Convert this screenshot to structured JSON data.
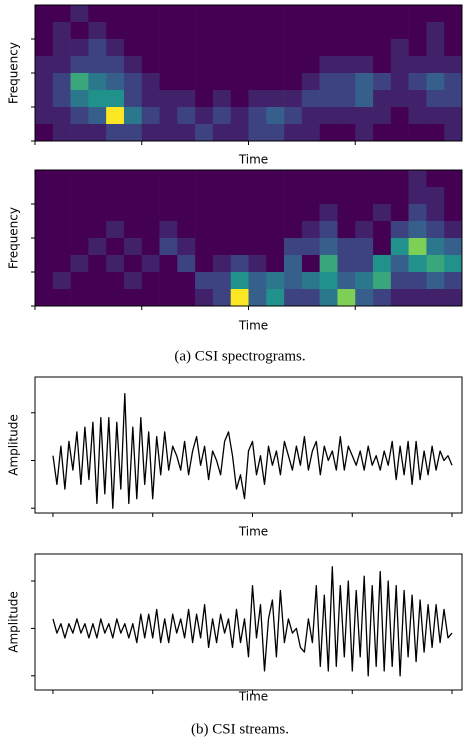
{
  "chart_data": [
    {
      "type": "heatmap",
      "xlabel": "Time",
      "ylabel": "Frequency",
      "xlim": [
        0,
        24
      ],
      "ylim": [
        0,
        4
      ],
      "xticks": [
        0,
        6,
        12,
        18
      ],
      "yticks": [
        0,
        1,
        2,
        3
      ],
      "zlim": [
        0,
        1
      ],
      "colorscale": [
        "#440154",
        "#3b528b",
        "#21918c",
        "#5ec962",
        "#fde725"
      ],
      "values": [
        [
          0,
          0,
          0.1,
          0,
          0,
          0,
          0,
          0,
          0,
          0,
          0,
          0,
          0,
          0,
          0,
          0,
          0,
          0,
          0,
          0,
          0,
          0,
          0,
          0
        ],
        [
          0,
          0.1,
          0,
          0.1,
          0,
          0,
          0,
          0,
          0,
          0,
          0,
          0,
          0,
          0,
          0,
          0,
          0,
          0,
          0,
          0,
          0,
          0,
          0.1,
          0
        ],
        [
          0,
          0.1,
          0.1,
          0.2,
          0.1,
          0,
          0,
          0,
          0,
          0,
          0,
          0,
          0,
          0,
          0,
          0,
          0,
          0,
          0,
          0,
          0.1,
          0,
          0.1,
          0
        ],
        [
          0.1,
          0.1,
          0.2,
          0.2,
          0.2,
          0.1,
          0,
          0,
          0,
          0,
          0,
          0,
          0,
          0,
          0,
          0,
          0.1,
          0.1,
          0.1,
          0,
          0.1,
          0.1,
          0.1,
          0.1
        ],
        [
          0.1,
          0.2,
          0.6,
          0.4,
          0.3,
          0.2,
          0.1,
          0,
          0,
          0,
          0,
          0,
          0,
          0,
          0,
          0.1,
          0.2,
          0.2,
          0.3,
          0.2,
          0.1,
          0.2,
          0.3,
          0.2
        ],
        [
          0.1,
          0.2,
          0.4,
          0.5,
          0.5,
          0.2,
          0.1,
          0.1,
          0.1,
          0,
          0.1,
          0,
          0.1,
          0.1,
          0.1,
          0.2,
          0.2,
          0.2,
          0.3,
          0.1,
          0.1,
          0.1,
          0.2,
          0.2
        ],
        [
          0.1,
          0.1,
          0.2,
          0.3,
          1.0,
          0.4,
          0.2,
          0.1,
          0.2,
          0.1,
          0.2,
          0.1,
          0.2,
          0.3,
          0.2,
          0.1,
          0.1,
          0.1,
          0.1,
          0.1,
          0,
          0.1,
          0.1,
          0.1
        ],
        [
          0,
          0.1,
          0.1,
          0.1,
          0.2,
          0.2,
          0.1,
          0.1,
          0.1,
          0.2,
          0.1,
          0.1,
          0.2,
          0.2,
          0.1,
          0.1,
          0,
          0,
          0.1,
          0,
          0,
          0,
          0,
          0.1
        ]
      ]
    },
    {
      "type": "heatmap",
      "xlabel": "Time",
      "ylabel": "Frequency",
      "xlim": [
        0,
        24
      ],
      "ylim": [
        0,
        4
      ],
      "xticks": [
        0,
        6,
        12,
        18
      ],
      "yticks": [
        0,
        1,
        2,
        3
      ],
      "zlim": [
        0,
        1
      ],
      "colorscale": [
        "#440154",
        "#3b528b",
        "#21918c",
        "#5ec962",
        "#fde725"
      ],
      "values": [
        [
          0,
          0,
          0,
          0,
          0,
          0,
          0,
          0,
          0,
          0,
          0,
          0,
          0,
          0,
          0,
          0,
          0,
          0,
          0,
          0,
          0,
          0.1,
          0,
          0
        ],
        [
          0,
          0,
          0,
          0,
          0,
          0,
          0,
          0,
          0,
          0,
          0,
          0,
          0,
          0,
          0,
          0,
          0,
          0,
          0,
          0,
          0,
          0.1,
          0.1,
          0
        ],
        [
          0,
          0,
          0,
          0,
          0,
          0,
          0,
          0,
          0,
          0,
          0,
          0,
          0,
          0,
          0,
          0,
          0.1,
          0,
          0,
          0.1,
          0,
          0.2,
          0.1,
          0
        ],
        [
          0,
          0,
          0,
          0,
          0.1,
          0,
          0,
          0.1,
          0,
          0,
          0,
          0,
          0,
          0,
          0,
          0.1,
          0.2,
          0,
          0.1,
          0,
          0.2,
          0.3,
          0.2,
          0.1
        ],
        [
          0,
          0,
          0,
          0.1,
          0,
          0.1,
          0,
          0.2,
          0.1,
          0,
          0,
          0,
          0,
          0,
          0.2,
          0.2,
          0.3,
          0.2,
          0.2,
          0,
          0.5,
          0.8,
          0.4,
          0.3
        ],
        [
          0,
          0,
          0.1,
          0,
          0.1,
          0,
          0.1,
          0,
          0.2,
          0,
          0.1,
          0.2,
          0.1,
          0,
          0.3,
          0,
          0.6,
          0.2,
          0.2,
          0.5,
          0.3,
          0.5,
          0.6,
          0.5
        ],
        [
          0,
          0.1,
          0,
          0,
          0,
          0.1,
          0,
          0,
          0,
          0.2,
          0.2,
          0.5,
          0.3,
          0.4,
          0.3,
          0.4,
          0.5,
          0.3,
          0.4,
          0.6,
          0.2,
          0.2,
          0.3,
          0.2
        ],
        [
          0,
          0,
          0,
          0,
          0,
          0,
          0,
          0,
          0,
          0.1,
          0.2,
          1.0,
          0.3,
          0.5,
          0.2,
          0.2,
          0.4,
          0.8,
          0.3,
          0.2,
          0.1,
          0.1,
          0.1,
          0.1
        ]
      ]
    },
    {
      "type": "line",
      "xlabel": "Time",
      "ylabel": "Amplitude",
      "xlim": [
        -9,
        205
      ],
      "ylim": [
        -1.1,
        1.75
      ],
      "xticks": [
        0,
        50,
        100,
        150,
        200
      ],
      "yticks": [
        -1,
        0,
        1
      ],
      "color": "#000000",
      "x": [
        0,
        2,
        4,
        6,
        8,
        10,
        12,
        14,
        16,
        18,
        20,
        22,
        24,
        26,
        28,
        30,
        32,
        34,
        36,
        38,
        40,
        42,
        44,
        46,
        48,
        50,
        52,
        54,
        56,
        58,
        60,
        62,
        64,
        66,
        68,
        70,
        72,
        74,
        76,
        78,
        80,
        82,
        84,
        86,
        88,
        90,
        92,
        94,
        96,
        98,
        100,
        102,
        104,
        106,
        108,
        110,
        112,
        114,
        116,
        118,
        120,
        122,
        124,
        126,
        128,
        130,
        132,
        134,
        136,
        138,
        140,
        142,
        144,
        146,
        148,
        150,
        152,
        154,
        156,
        158,
        160,
        162,
        164,
        166,
        168,
        170,
        172,
        174,
        176,
        178,
        180,
        182,
        184,
        186,
        188,
        190,
        192,
        194,
        196,
        198,
        200
      ],
      "values": [
        0.1,
        -0.5,
        0.3,
        -0.6,
        0.4,
        -0.2,
        0.6,
        -0.5,
        0.7,
        -0.4,
        0.8,
        -0.9,
        0.9,
        -0.7,
        0.9,
        -1.0,
        0.8,
        -0.6,
        1.4,
        -0.9,
        0.7,
        -0.8,
        0.9,
        -0.5,
        0.6,
        -0.8,
        0.5,
        -0.3,
        0.6,
        -0.2,
        0.3,
        0.1,
        -0.2,
        0.4,
        -0.3,
        0.2,
        0.5,
        -0.1,
        0.3,
        -0.4,
        0.2,
        0.0,
        -0.3,
        0.4,
        0.6,
        0.1,
        -0.6,
        -0.3,
        -0.8,
        0.2,
        0.4,
        -0.3,
        0.1,
        -0.5,
        0.3,
        -0.1,
        0.2,
        -0.3,
        0.4,
        0.1,
        -0.2,
        0.3,
        -0.1,
        0.5,
        -0.2,
        0.2,
        0.4,
        -0.3,
        0.3,
        0.0,
        0.2,
        -0.2,
        0.5,
        -0.2,
        0.3,
        0.1,
        -0.1,
        0.2,
        -0.2,
        0.3,
        -0.1,
        0.1,
        -0.2,
        0.2,
        -0.1,
        0.4,
        -0.4,
        0.3,
        -0.3,
        0.4,
        -0.5,
        0.4,
        -0.4,
        0.2,
        -0.3,
        0.3,
        -0.2,
        0.2,
        0.0,
        0.1,
        -0.1
      ]
    },
    {
      "type": "line",
      "xlabel": "Time",
      "ylabel": "Amplitude",
      "xlim": [
        -9,
        205
      ],
      "ylim": [
        -1.3,
        1.57
      ],
      "xticks": [
        0,
        50,
        100,
        150,
        200
      ],
      "yticks": [
        -1,
        0,
        1
      ],
      "color": "#000000",
      "x": [
        0,
        2,
        4,
        6,
        8,
        10,
        12,
        14,
        16,
        18,
        20,
        22,
        24,
        26,
        28,
        30,
        32,
        34,
        36,
        38,
        40,
        42,
        44,
        46,
        48,
        50,
        52,
        54,
        56,
        58,
        60,
        62,
        64,
        66,
        68,
        70,
        72,
        74,
        76,
        78,
        80,
        82,
        84,
        86,
        88,
        90,
        92,
        94,
        96,
        98,
        100,
        102,
        104,
        106,
        108,
        110,
        112,
        114,
        116,
        118,
        120,
        122,
        124,
        126,
        128,
        130,
        132,
        134,
        136,
        138,
        140,
        142,
        144,
        146,
        148,
        150,
        152,
        154,
        156,
        158,
        160,
        162,
        164,
        166,
        168,
        170,
        172,
        174,
        176,
        178,
        180,
        182,
        184,
        186,
        188,
        190,
        192,
        194,
        196,
        198,
        200
      ],
      "values": [
        0.2,
        -0.1,
        0.1,
        -0.2,
        0.1,
        -0.1,
        0.2,
        -0.1,
        0.1,
        -0.2,
        0.1,
        -0.2,
        0.2,
        -0.1,
        0.1,
        -0.2,
        0.2,
        -0.1,
        0.1,
        -0.2,
        0.1,
        -0.3,
        0.3,
        -0.2,
        0.3,
        -0.2,
        0.4,
        -0.3,
        0.2,
        -0.3,
        0.3,
        -0.1,
        0.2,
        -0.2,
        0.4,
        -0.3,
        0.3,
        -0.2,
        0.5,
        -0.4,
        0.2,
        -0.3,
        0.3,
        -0.1,
        0.2,
        -0.4,
        0.4,
        -0.3,
        0.2,
        -0.6,
        0.9,
        -0.2,
        0.5,
        -0.9,
        0.2,
        0.6,
        -0.6,
        0.8,
        -0.3,
        0.2,
        -0.1,
        0.0,
        -0.4,
        -0.5,
        0.2,
        -0.3,
        0.9,
        -0.8,
        0.7,
        -0.9,
        1.3,
        -0.8,
        0.9,
        -0.6,
        1.0,
        -0.9,
        0.8,
        -0.6,
        1.1,
        -1.0,
        0.9,
        -0.8,
        1.2,
        -0.9,
        1.0,
        -0.8,
        0.9,
        -1.0,
        0.8,
        -0.6,
        0.7,
        -0.7,
        0.6,
        -0.5,
        0.5,
        -0.4,
        0.5,
        -0.3,
        0.4,
        -0.2,
        -0.1
      ]
    }
  ],
  "captions": [
    "(a) CSI spectrograms.",
    "(b) CSI streams."
  ]
}
